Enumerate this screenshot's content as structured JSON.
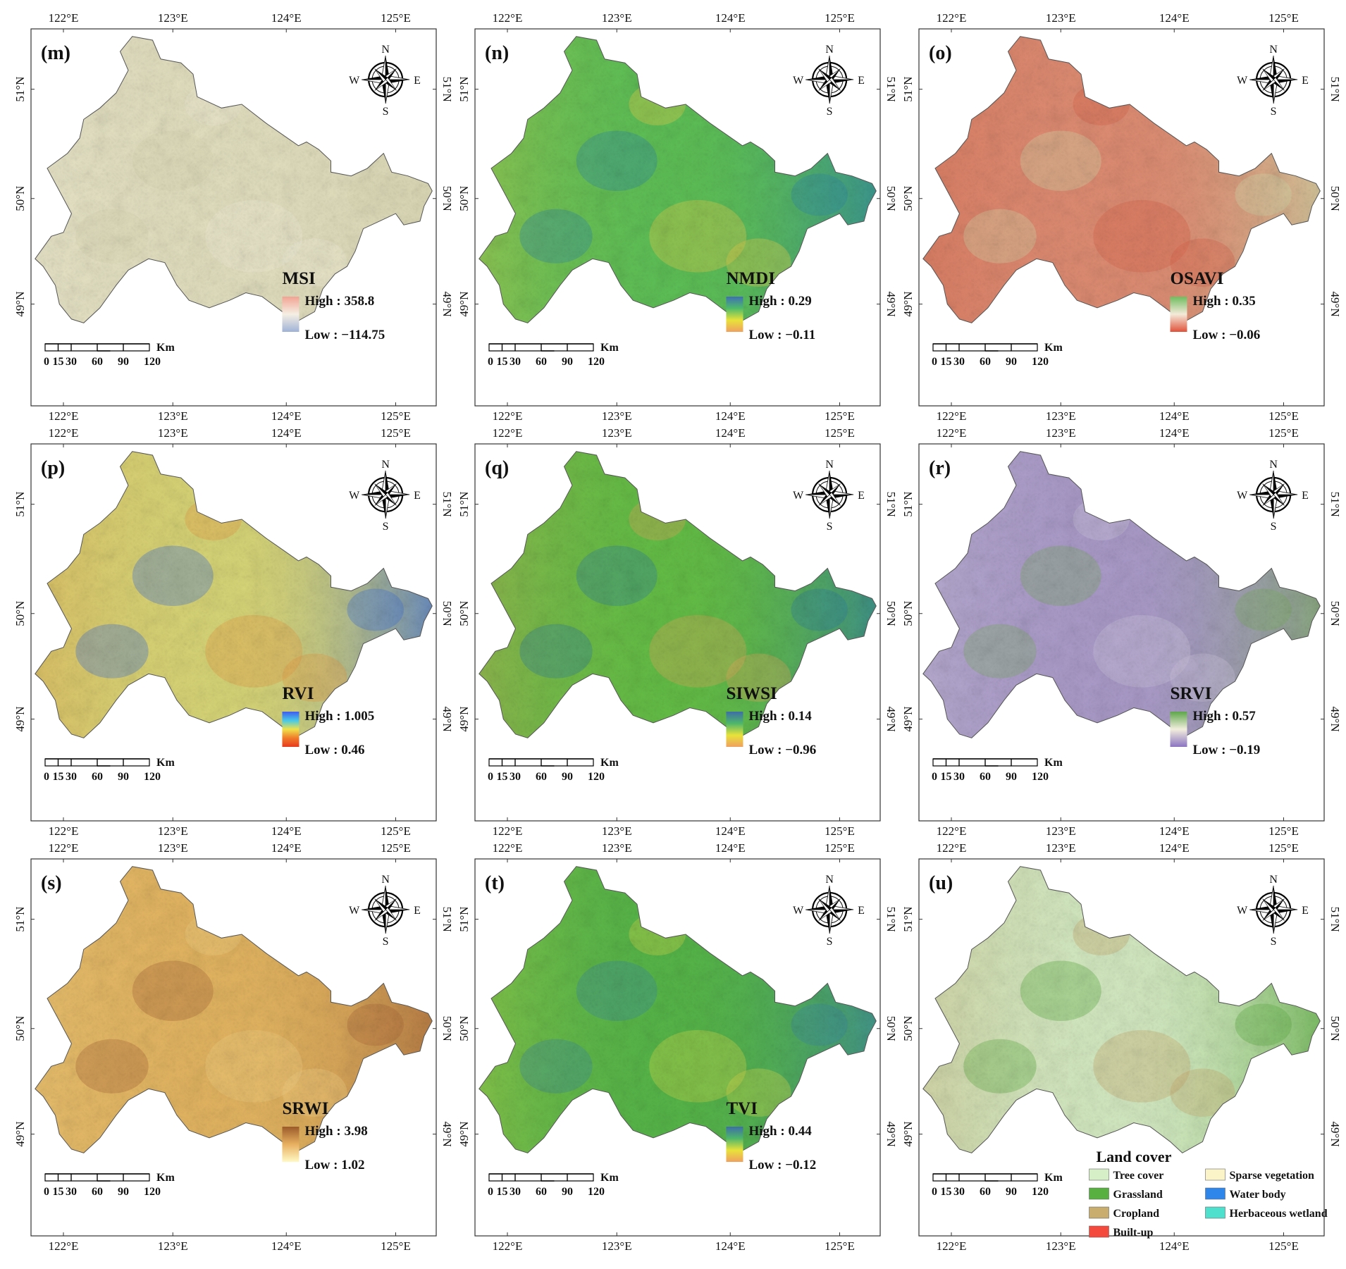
{
  "grid": {
    "top_labels": [
      "122°E",
      "123°E",
      "124°E",
      "125°E"
    ],
    "side_labels": [
      "51°N",
      "50°N",
      "49°N"
    ]
  },
  "compass": {
    "n": "N",
    "s": "S",
    "e": "E",
    "w": "W"
  },
  "scalebar": {
    "ticks": [
      "0",
      "15",
      "30",
      "60",
      "90",
      "120"
    ],
    "unit": "Km"
  },
  "panels": [
    {
      "id": "m",
      "letter": "(m)",
      "index_name": "MSI",
      "high": "High : 358.8",
      "low": "Low : −114.75",
      "colors": {
        "base": "#e2dfbf",
        "hi": "#d8d5b1",
        "lo": "#eeebd6"
      },
      "legend_ramp": [
        "#f2a393",
        "#f5efe3",
        "#9fb2d6"
      ]
    },
    {
      "id": "n",
      "letter": "(n)",
      "index_name": "NMDI",
      "high": "High : 0.29",
      "low": "Low : −0.11",
      "colors": {
        "base": "#5dbf55",
        "hi": "#2e88a5",
        "lo": "#e7cc4a"
      },
      "legend_ramp": [
        "#3f6fb5",
        "#4dbb6a",
        "#e8e23a",
        "#f0a060"
      ]
    },
    {
      "id": "o",
      "letter": "(o)",
      "index_name": "OSAVI",
      "high": "High : 0.35",
      "low": "Low : −0.06",
      "colors": {
        "base": "#de8c72",
        "hi": "#cdd8a8",
        "lo": "#d6624a"
      },
      "legend_ramp": [
        "#6ebc5e",
        "#f4ead8",
        "#e0523a"
      ]
    },
    {
      "id": "p",
      "letter": "(p)",
      "index_name": "RVI",
      "high": "High : 1.005",
      "low": "Low : 0.46",
      "colors": {
        "base": "#d7d577",
        "hi": "#3f6fd8",
        "lo": "#e49a45"
      },
      "legend_ramp": [
        "#3f5cf0",
        "#46c9e8",
        "#f0e24a",
        "#f07b2a",
        "#e83a1f"
      ]
    },
    {
      "id": "q",
      "letter": "(q)",
      "index_name": "SIWSI",
      "high": "High : 0.14",
      "low": "Low : −0.96",
      "colors": {
        "base": "#63bd45",
        "hi": "#2f7f9f",
        "lo": "#e0a55a"
      },
      "legend_ramp": [
        "#3d6ea8",
        "#4db66a",
        "#e8e23a",
        "#f0a060"
      ]
    },
    {
      "id": "r",
      "letter": "(r)",
      "index_name": "SRVI",
      "high": "High : 0.57",
      "low": "Low : −0.19",
      "colors": {
        "base": "#a99ac8",
        "hi": "#7cab62",
        "lo": "#cfc7dc"
      },
      "legend_ramp": [
        "#5da64a",
        "#f2eedd",
        "#8b74c2"
      ]
    },
    {
      "id": "s",
      "letter": "(s)",
      "index_name": "SRWI",
      "high": "High : 3.98",
      "low": "Low : 1.02",
      "colors": {
        "base": "#e2b460",
        "hi": "#a8683a",
        "lo": "#f0cf84"
      },
      "legend_ramp": [
        "#9b5a2a",
        "#e8b060",
        "#fff9c4"
      ]
    },
    {
      "id": "t",
      "letter": "(t)",
      "index_name": "TVI",
      "high": "High : 0.44",
      "low": "Low : −0.12",
      "colors": {
        "base": "#55b548",
        "hi": "#3a87a0",
        "lo": "#d8d84a"
      },
      "legend_ramp": [
        "#3d6ea8",
        "#4db66a",
        "#e8e23a",
        "#f0a060"
      ]
    },
    {
      "id": "u",
      "letter": "(u)",
      "index_name": "Land cover",
      "landcover": true,
      "colors": {
        "base": "#d3e9c1",
        "hi": "#5cad42",
        "lo": "#c9a86c"
      },
      "legend": [
        {
          "label": "Tree cover",
          "color": "#d6efc6"
        },
        {
          "label": "Sparse vegetation",
          "color": "#fbf4c8"
        },
        {
          "label": "Grassland",
          "color": "#58b040"
        },
        {
          "label": "Water body",
          "color": "#2f86ea"
        },
        {
          "label": "Cropland",
          "color": "#c8ad6e"
        },
        {
          "label": "Herbaceous wetland",
          "color": "#4fe0cd"
        },
        {
          "label": "Built-up",
          "color": "#f44a3e"
        }
      ]
    }
  ]
}
